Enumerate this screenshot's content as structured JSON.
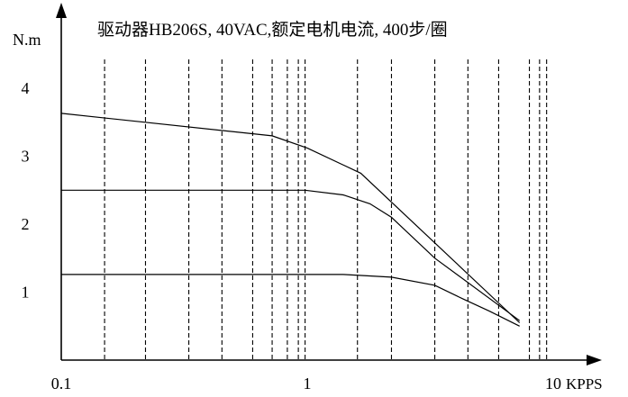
{
  "chart_data": {
    "type": "line",
    "title": "驱动器HB206S, 40VAC,额定电机电流, 400步/圈",
    "ylabel": "N.m",
    "xlabel": "KPPS",
    "x_scale": "log",
    "xlim": [
      0.1,
      12
    ],
    "ylim": [
      0,
      4.5
    ],
    "x_ticks": [
      0.1,
      1,
      10
    ],
    "x_tick_labels": [
      "0.1",
      "1",
      "10"
    ],
    "y_ticks": [
      1,
      2,
      3,
      4
    ],
    "y_tick_labels": [
      "1",
      "2",
      "3",
      "4"
    ],
    "grid": "vertical dashed",
    "grid_x": [
      0.15,
      0.22,
      0.33,
      0.45,
      0.6,
      0.72,
      0.83,
      0.92,
      0.98,
      1.6,
      2.2,
      3.3,
      4.5,
      6,
      8,
      8.8,
      9.4
    ],
    "series": [
      {
        "x": [
          0.1,
          0.72,
          1,
          1.65,
          7.3
        ],
        "values": [
          3.63,
          3.3,
          3.12,
          2.75,
          0.55
        ]
      },
      {
        "x": [
          0.1,
          0.98,
          1.4,
          1.8,
          2.2,
          3.3,
          7.3
        ],
        "values": [
          2.5,
          2.5,
          2.43,
          2.3,
          2.1,
          1.5,
          0.58
        ]
      },
      {
        "x": [
          0.1,
          1.4,
          2.2,
          3.3,
          4.3,
          5.5,
          7.3
        ],
        "values": [
          1.26,
          1.26,
          1.22,
          1.1,
          0.9,
          0.72,
          0.5
        ]
      }
    ]
  }
}
